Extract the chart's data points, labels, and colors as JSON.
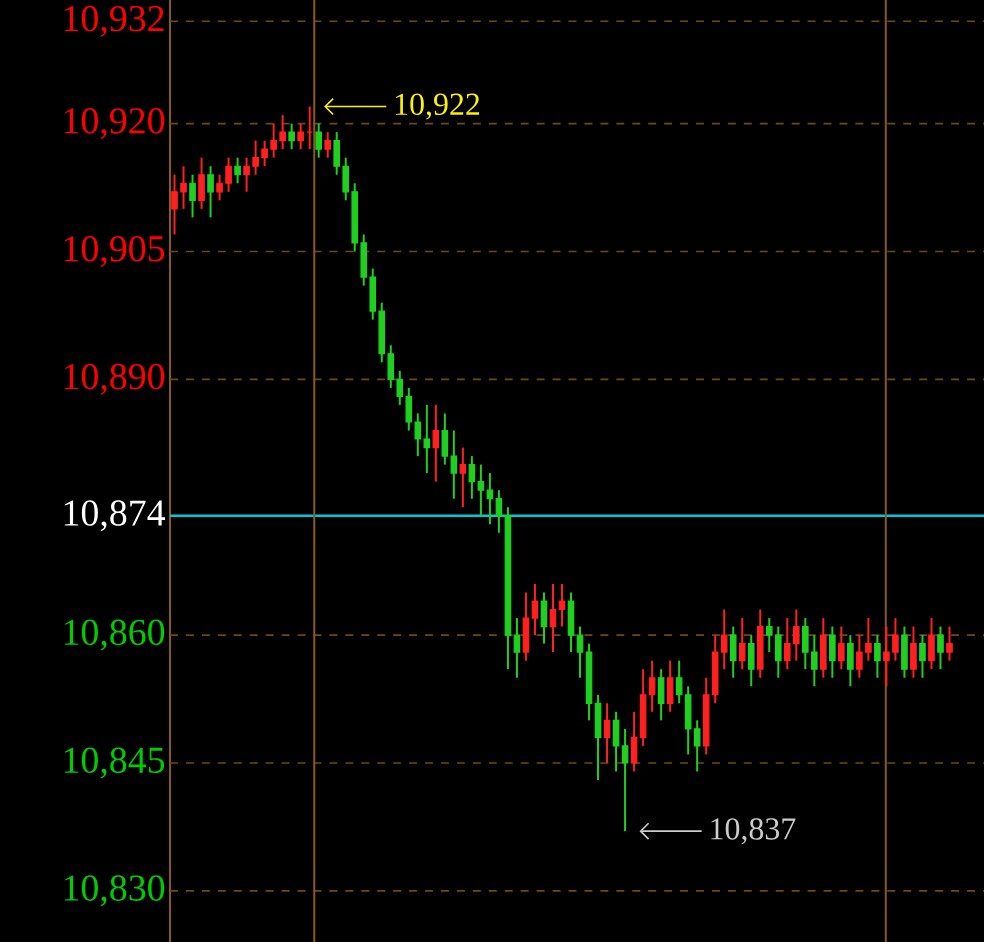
{
  "chart_data": {
    "type": "candlestick",
    "categories": [
      null,
      null,
      null,
      null,
      null,
      null,
      null,
      null,
      null,
      null,
      null,
      null,
      null,
      null,
      null,
      null,
      null,
      null,
      null,
      null,
      null,
      null,
      null,
      null,
      null,
      null,
      null,
      null,
      null,
      null,
      null,
      null,
      null,
      null,
      null,
      null,
      null,
      null,
      null,
      null,
      null,
      null,
      null,
      null,
      null,
      null,
      null,
      null,
      null,
      null,
      null,
      null,
      null,
      null,
      null,
      null,
      null,
      null,
      null,
      null,
      null,
      null,
      null,
      null,
      null,
      null,
      null,
      null,
      null,
      null,
      null,
      null,
      null,
      null,
      null,
      null,
      null,
      null,
      null,
      null,
      null,
      null,
      null,
      null,
      null,
      null,
      null
    ],
    "ohlc": [
      [
        10910,
        10914,
        10907,
        10912
      ],
      [
        10912,
        10915,
        10910,
        10913
      ],
      [
        10913,
        10914,
        10909,
        10911
      ],
      [
        10911,
        10916,
        10910,
        10914
      ],
      [
        10914,
        10915,
        10909,
        10912
      ],
      [
        10912,
        10914,
        10911,
        10913
      ],
      [
        10913,
        10916,
        10912,
        10915
      ],
      [
        10915,
        10916,
        10913,
        10914
      ],
      [
        10914,
        10916,
        10912,
        10915
      ],
      [
        10915,
        10918,
        10914,
        10916
      ],
      [
        10916,
        10918,
        10915,
        10917
      ],
      [
        10917,
        10920,
        10916,
        10918
      ],
      [
        10918,
        10921,
        10917,
        10919
      ],
      [
        10919,
        10920,
        10917,
        10918
      ],
      [
        10918,
        10920,
        10917,
        10919
      ],
      [
        10919,
        10922,
        10917,
        10919
      ],
      [
        10919,
        10920,
        10916,
        10917
      ],
      [
        10917,
        10919,
        10916,
        10918
      ],
      [
        10918,
        10919,
        10914,
        10915
      ],
      [
        10915,
        10916,
        10911,
        10912
      ],
      [
        10912,
        10913,
        10905,
        10906
      ],
      [
        10906,
        10907,
        10901,
        10902
      ],
      [
        10902,
        10903,
        10897,
        10898
      ],
      [
        10898,
        10899,
        10892,
        10893
      ],
      [
        10893,
        10894,
        10889,
        10890
      ],
      [
        10890,
        10891,
        10887,
        10888
      ],
      [
        10888,
        10889,
        10884,
        10885
      ],
      [
        10885,
        10886,
        10881,
        10883
      ],
      [
        10883,
        10887,
        10879,
        10882
      ],
      [
        10882,
        10887,
        10878,
        10884
      ],
      [
        10884,
        10886,
        10880,
        10881
      ],
      [
        10881,
        10884,
        10876,
        10879
      ],
      [
        10879,
        10882,
        10875,
        10880
      ],
      [
        10880,
        10881,
        10876,
        10878
      ],
      [
        10878,
        10880,
        10874,
        10877
      ],
      [
        10877,
        10879,
        10873,
        10876
      ],
      [
        10876,
        10877,
        10872,
        10874
      ],
      [
        10874,
        10875,
        10856,
        10860
      ],
      [
        10860,
        10862,
        10855,
        10858
      ],
      [
        10858,
        10865,
        10857,
        10862
      ],
      [
        10862,
        10866,
        10860,
        10864
      ],
      [
        10864,
        10865,
        10859,
        10861
      ],
      [
        10861,
        10866,
        10858,
        10863
      ],
      [
        10863,
        10866,
        10861,
        10864
      ],
      [
        10864,
        10865,
        10858,
        10860
      ],
      [
        10860,
        10861,
        10855,
        10858
      ],
      [
        10858,
        10859,
        10850,
        10852
      ],
      [
        10852,
        10853,
        10843,
        10848
      ],
      [
        10848,
        10852,
        10845,
        10850
      ],
      [
        10850,
        10851,
        10844,
        10847
      ],
      [
        10847,
        10849,
        10837,
        10845
      ],
      [
        10845,
        10851,
        10844,
        10848
      ],
      [
        10848,
        10856,
        10847,
        10853
      ],
      [
        10853,
        10857,
        10851,
        10855
      ],
      [
        10855,
        10856,
        10850,
        10852
      ],
      [
        10852,
        10857,
        10851,
        10855
      ],
      [
        10855,
        10857,
        10852,
        10853
      ],
      [
        10853,
        10854,
        10846,
        10849
      ],
      [
        10849,
        10850,
        10844,
        10847
      ],
      [
        10847,
        10855,
        10846,
        10853
      ],
      [
        10853,
        10860,
        10852,
        10858
      ],
      [
        10858,
        10863,
        10856,
        10860
      ],
      [
        10860,
        10861,
        10855,
        10857
      ],
      [
        10857,
        10862,
        10856,
        10859
      ],
      [
        10859,
        10860,
        10854,
        10856
      ],
      [
        10856,
        10863,
        10855,
        10861
      ],
      [
        10861,
        10862,
        10858,
        10860
      ],
      [
        10860,
        10861,
        10855,
        10857
      ],
      [
        10857,
        10862,
        10856,
        10859
      ],
      [
        10859,
        10863,
        10857,
        10861
      ],
      [
        10861,
        10862,
        10856,
        10858
      ],
      [
        10858,
        10860,
        10854,
        10856
      ],
      [
        10856,
        10862,
        10855,
        10860
      ],
      [
        10860,
        10861,
        10855,
        10857
      ],
      [
        10857,
        10861,
        10856,
        10859
      ],
      [
        10859,
        10860,
        10854,
        10856
      ],
      [
        10856,
        10860,
        10855,
        10858
      ],
      [
        10858,
        10862,
        10857,
        10859
      ],
      [
        10859,
        10860,
        10855,
        10857
      ],
      [
        10857,
        10861,
        10854,
        10858
      ],
      [
        10858,
        10862,
        10857,
        10860
      ],
      [
        10860,
        10861,
        10855,
        10856
      ],
      [
        10856,
        10861,
        10855,
        10859
      ],
      [
        10859,
        10860,
        10855,
        10857
      ],
      [
        10857,
        10862,
        10856,
        10860
      ],
      [
        10860,
        10861,
        10856,
        10858
      ],
      [
        10858,
        10861,
        10857,
        10859
      ]
    ],
    "colors": [
      "#ff2020",
      "#ff2020",
      "#20d020",
      "#ff2020",
      "#20d020",
      "#ff2020",
      "#ff2020",
      "#20d020",
      "#ff2020",
      "#ff2020",
      "#ff2020",
      "#ff2020",
      "#ff2020",
      "#20d020",
      "#ff2020",
      "#ff2020",
      "#20d020",
      "#ff2020",
      "#20d020",
      "#20d020",
      "#20d020",
      "#20d020",
      "#20d020",
      "#20d020",
      "#20d020",
      "#20d020",
      "#20d020",
      "#20d020",
      "#20d020",
      "#ff2020",
      "#20d020",
      "#20d020",
      "#ff2020",
      "#20d020",
      "#20d020",
      "#20d020",
      "#20d020",
      "#20d020",
      "#20d020",
      "#ff2020",
      "#ff2020",
      "#20d020",
      "#ff2020",
      "#ff2020",
      "#20d020",
      "#20d020",
      "#20d020",
      "#20d020",
      "#ff2020",
      "#20d020",
      "#20d020",
      "#ff2020",
      "#ff2020",
      "#ff2020",
      "#20d020",
      "#ff2020",
      "#20d020",
      "#20d020",
      "#20d020",
      "#ff2020",
      "#ff2020",
      "#ff2020",
      "#20d020",
      "#ff2020",
      "#20d020",
      "#ff2020",
      "#20d020",
      "#20d020",
      "#ff2020",
      "#ff2020",
      "#20d020",
      "#20d020",
      "#ff2020",
      "#20d020",
      "#ff2020",
      "#20d020",
      "#ff2020",
      "#ff2020",
      "#20d020",
      "#ff2020",
      "#ff2020",
      "#20d020",
      "#ff2020",
      "#20d020",
      "#ff2020",
      "#20d020",
      "#ff2020"
    ],
    "ylim": [
      10824,
      10934.5
    ],
    "yticks": [
      {
        "value": 10932,
        "label": "10,932"
      },
      {
        "value": 10920,
        "label": "10,920"
      },
      {
        "value": 10905,
        "label": "10,905"
      },
      {
        "value": 10890,
        "label": "10,890"
      },
      {
        "value": 10874,
        "label": "10,874"
      },
      {
        "value": 10860,
        "label": "10,860"
      },
      {
        "value": 10845,
        "label": "10,845"
      },
      {
        "value": 10830,
        "label": "10,830"
      }
    ],
    "grid": "y",
    "ref_lines": [
      {
        "axis": "y",
        "value": 10874,
        "color": "#00c8d8"
      }
    ],
    "annotations": [
      "10,922",
      "10,837"
    ]
  }
}
